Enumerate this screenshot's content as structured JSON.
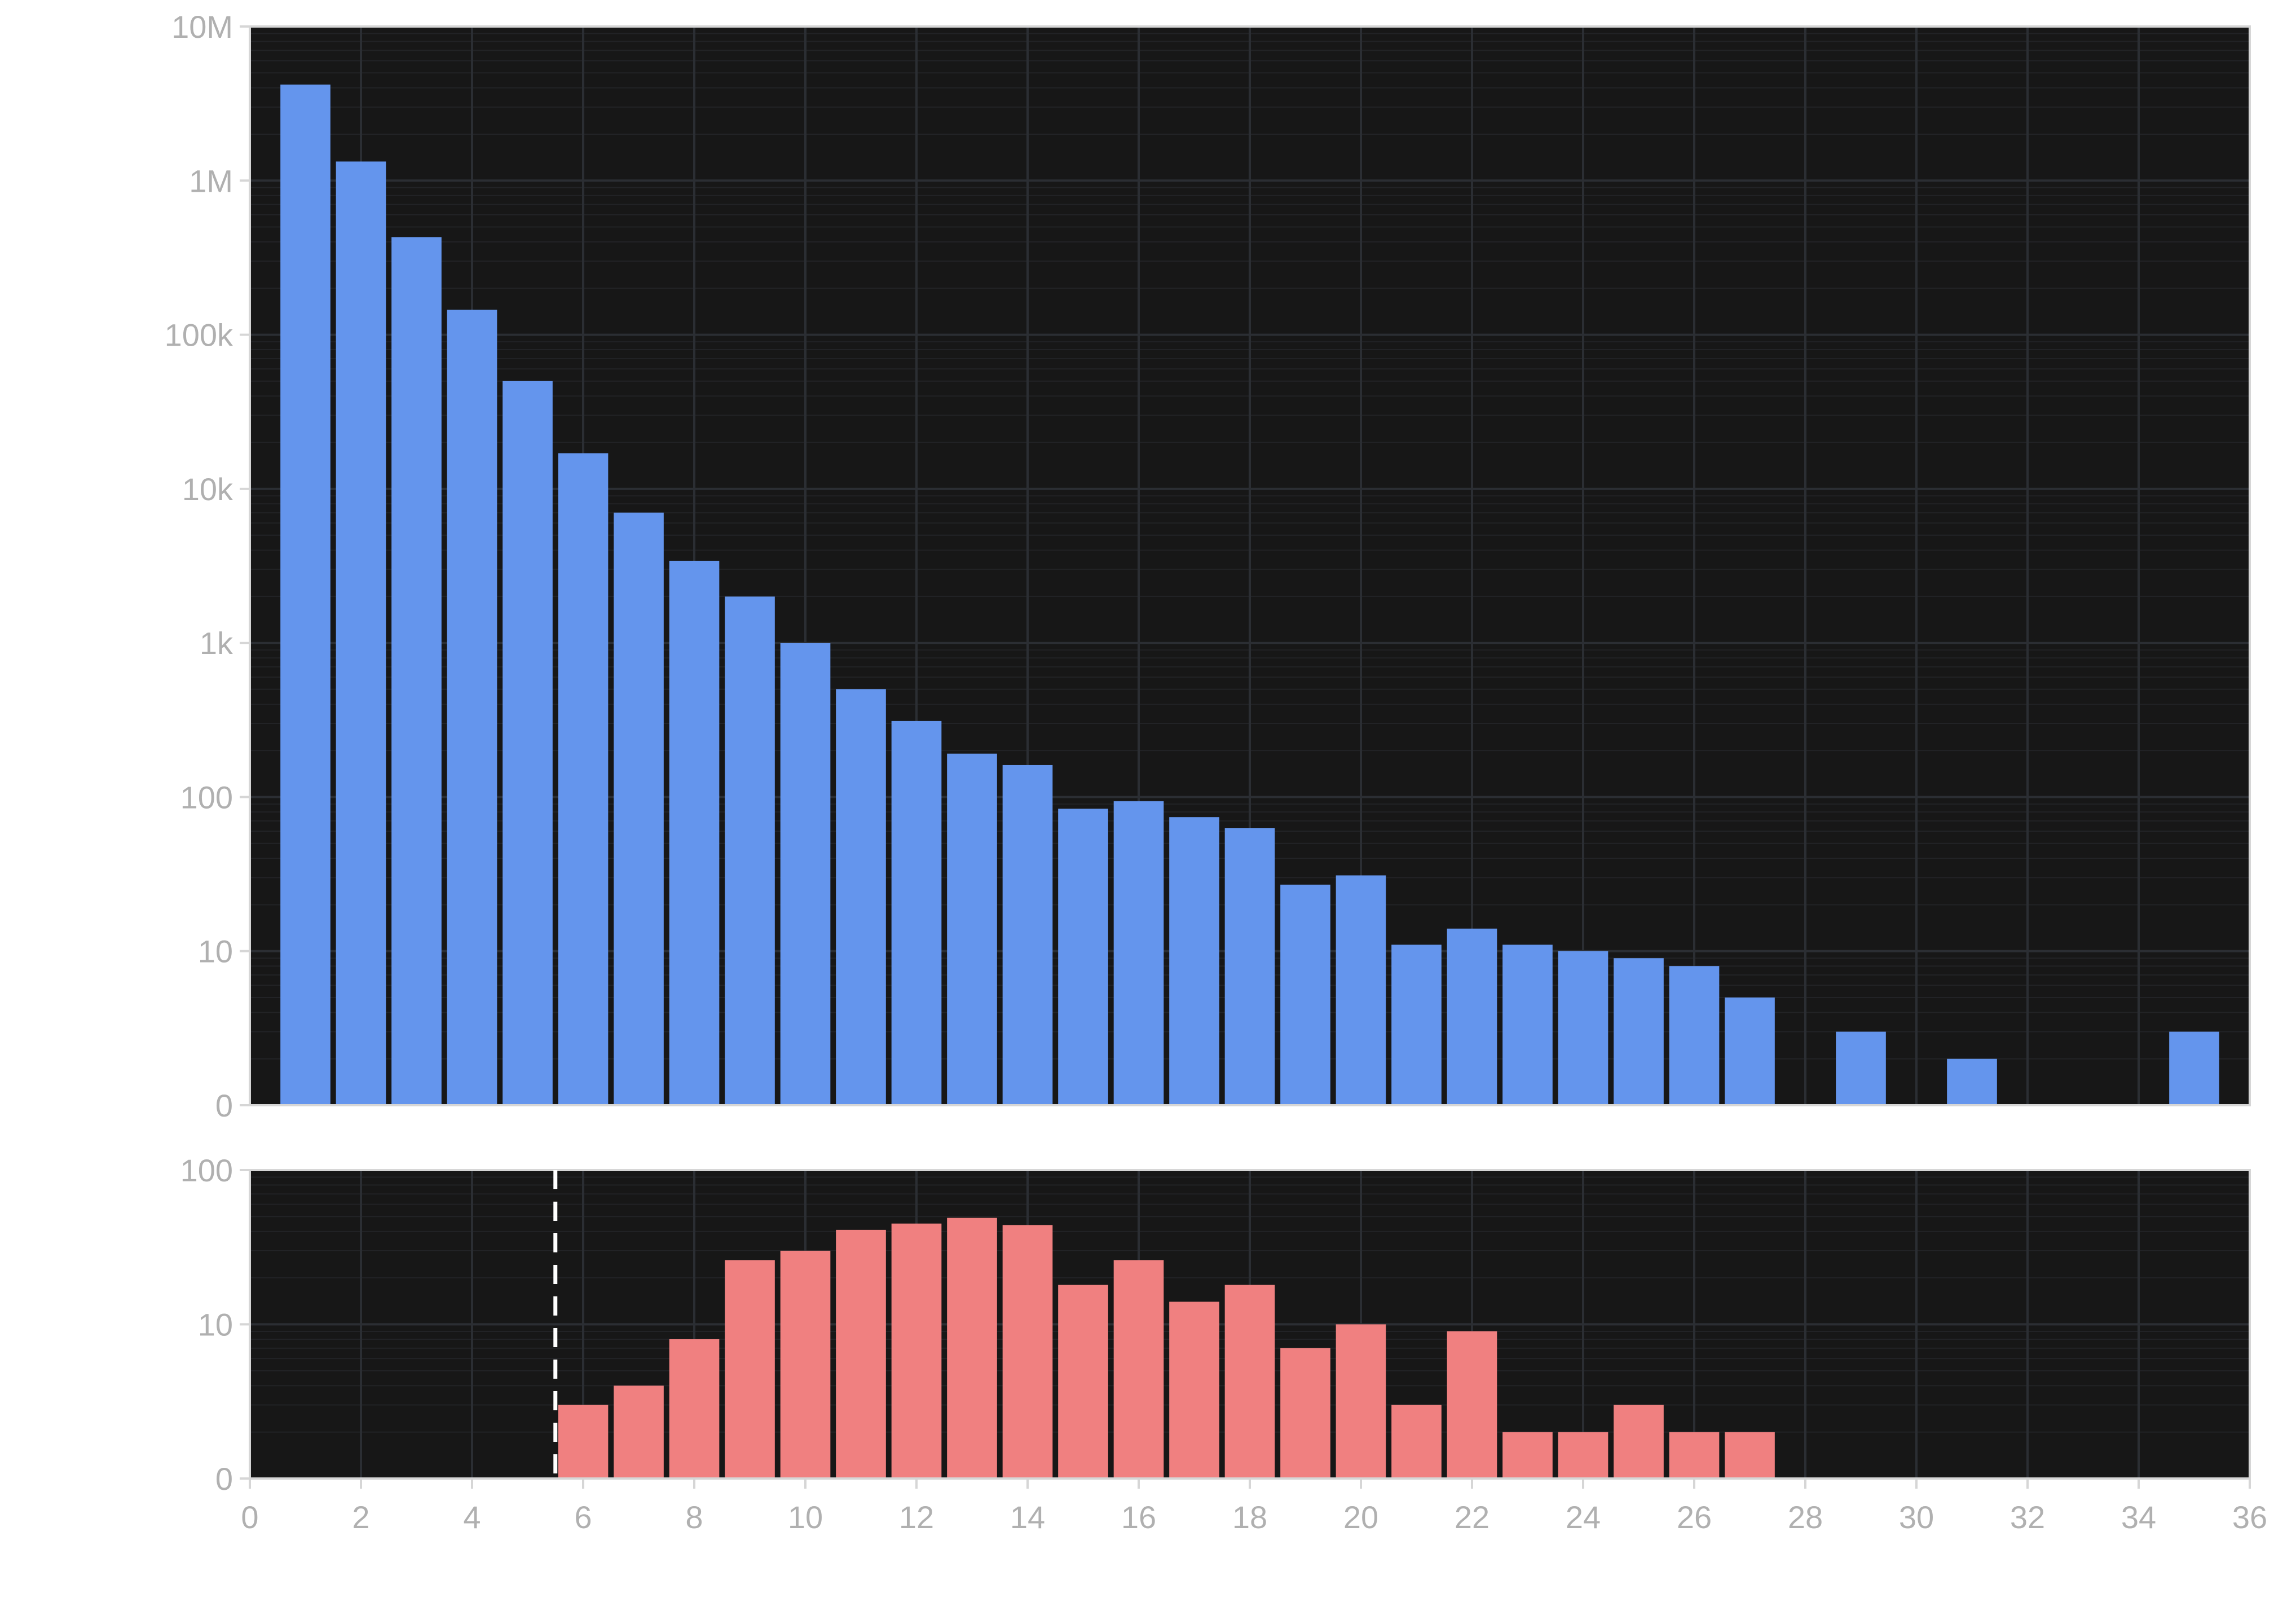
{
  "chart_data": [
    {
      "type": "bar",
      "panel": "top",
      "title": "",
      "xlabel": "",
      "ylabel": "",
      "y_scale": "log",
      "xlim": [
        0,
        36
      ],
      "ylim_labels": [
        "0",
        "10",
        "100",
        "1k",
        "10k",
        "100k",
        "1M",
        "10M"
      ],
      "grid": true,
      "bar_color": "#6495ED",
      "x": [
        1,
        2,
        3,
        4,
        5,
        6,
        7,
        8,
        9,
        10,
        11,
        12,
        13,
        14,
        15,
        16,
        17,
        18,
        19,
        20,
        21,
        22,
        23,
        24,
        25,
        26,
        27,
        29,
        31,
        35
      ],
      "values": [
        4200000,
        1330000,
        430000,
        145000,
        50000,
        17000,
        7000,
        3400,
        2000,
        1000,
        500,
        310,
        190,
        160,
        83,
        93,
        73,
        62,
        26,
        30,
        10,
        13,
        10,
        9,
        8,
        7,
        4,
        2,
        1,
        2
      ]
    },
    {
      "type": "bar",
      "panel": "bottom",
      "title": "",
      "xlabel": "",
      "ylabel": "",
      "y_scale": "log",
      "xlim": [
        0,
        36
      ],
      "ylim_labels": [
        "0",
        "10",
        "100"
      ],
      "grid": true,
      "bar_color": "#F08080",
      "threshold_x": 5.5,
      "x": [
        6,
        7,
        8,
        9,
        10,
        11,
        12,
        13,
        14,
        15,
        16,
        17,
        18,
        19,
        20,
        21,
        22,
        23,
        24,
        25,
        26,
        27
      ],
      "values": [
        2,
        3,
        7,
        25,
        29,
        40,
        44,
        48,
        43,
        17,
        25,
        13,
        17,
        6,
        9,
        2,
        8,
        1,
        1,
        2,
        1,
        1
      ]
    }
  ],
  "x_ticks": [
    "0",
    "2",
    "4",
    "6",
    "8",
    "10",
    "12",
    "14",
    "16",
    "18",
    "20",
    "22",
    "24",
    "26",
    "28",
    "30",
    "32",
    "34",
    "36"
  ],
  "colors": {
    "panel_background": "#171717",
    "top_bars": "#6495ED",
    "bottom_bars": "#F08080",
    "threshold_line": "#ffffff",
    "tick_text": "#b0b0b0"
  }
}
